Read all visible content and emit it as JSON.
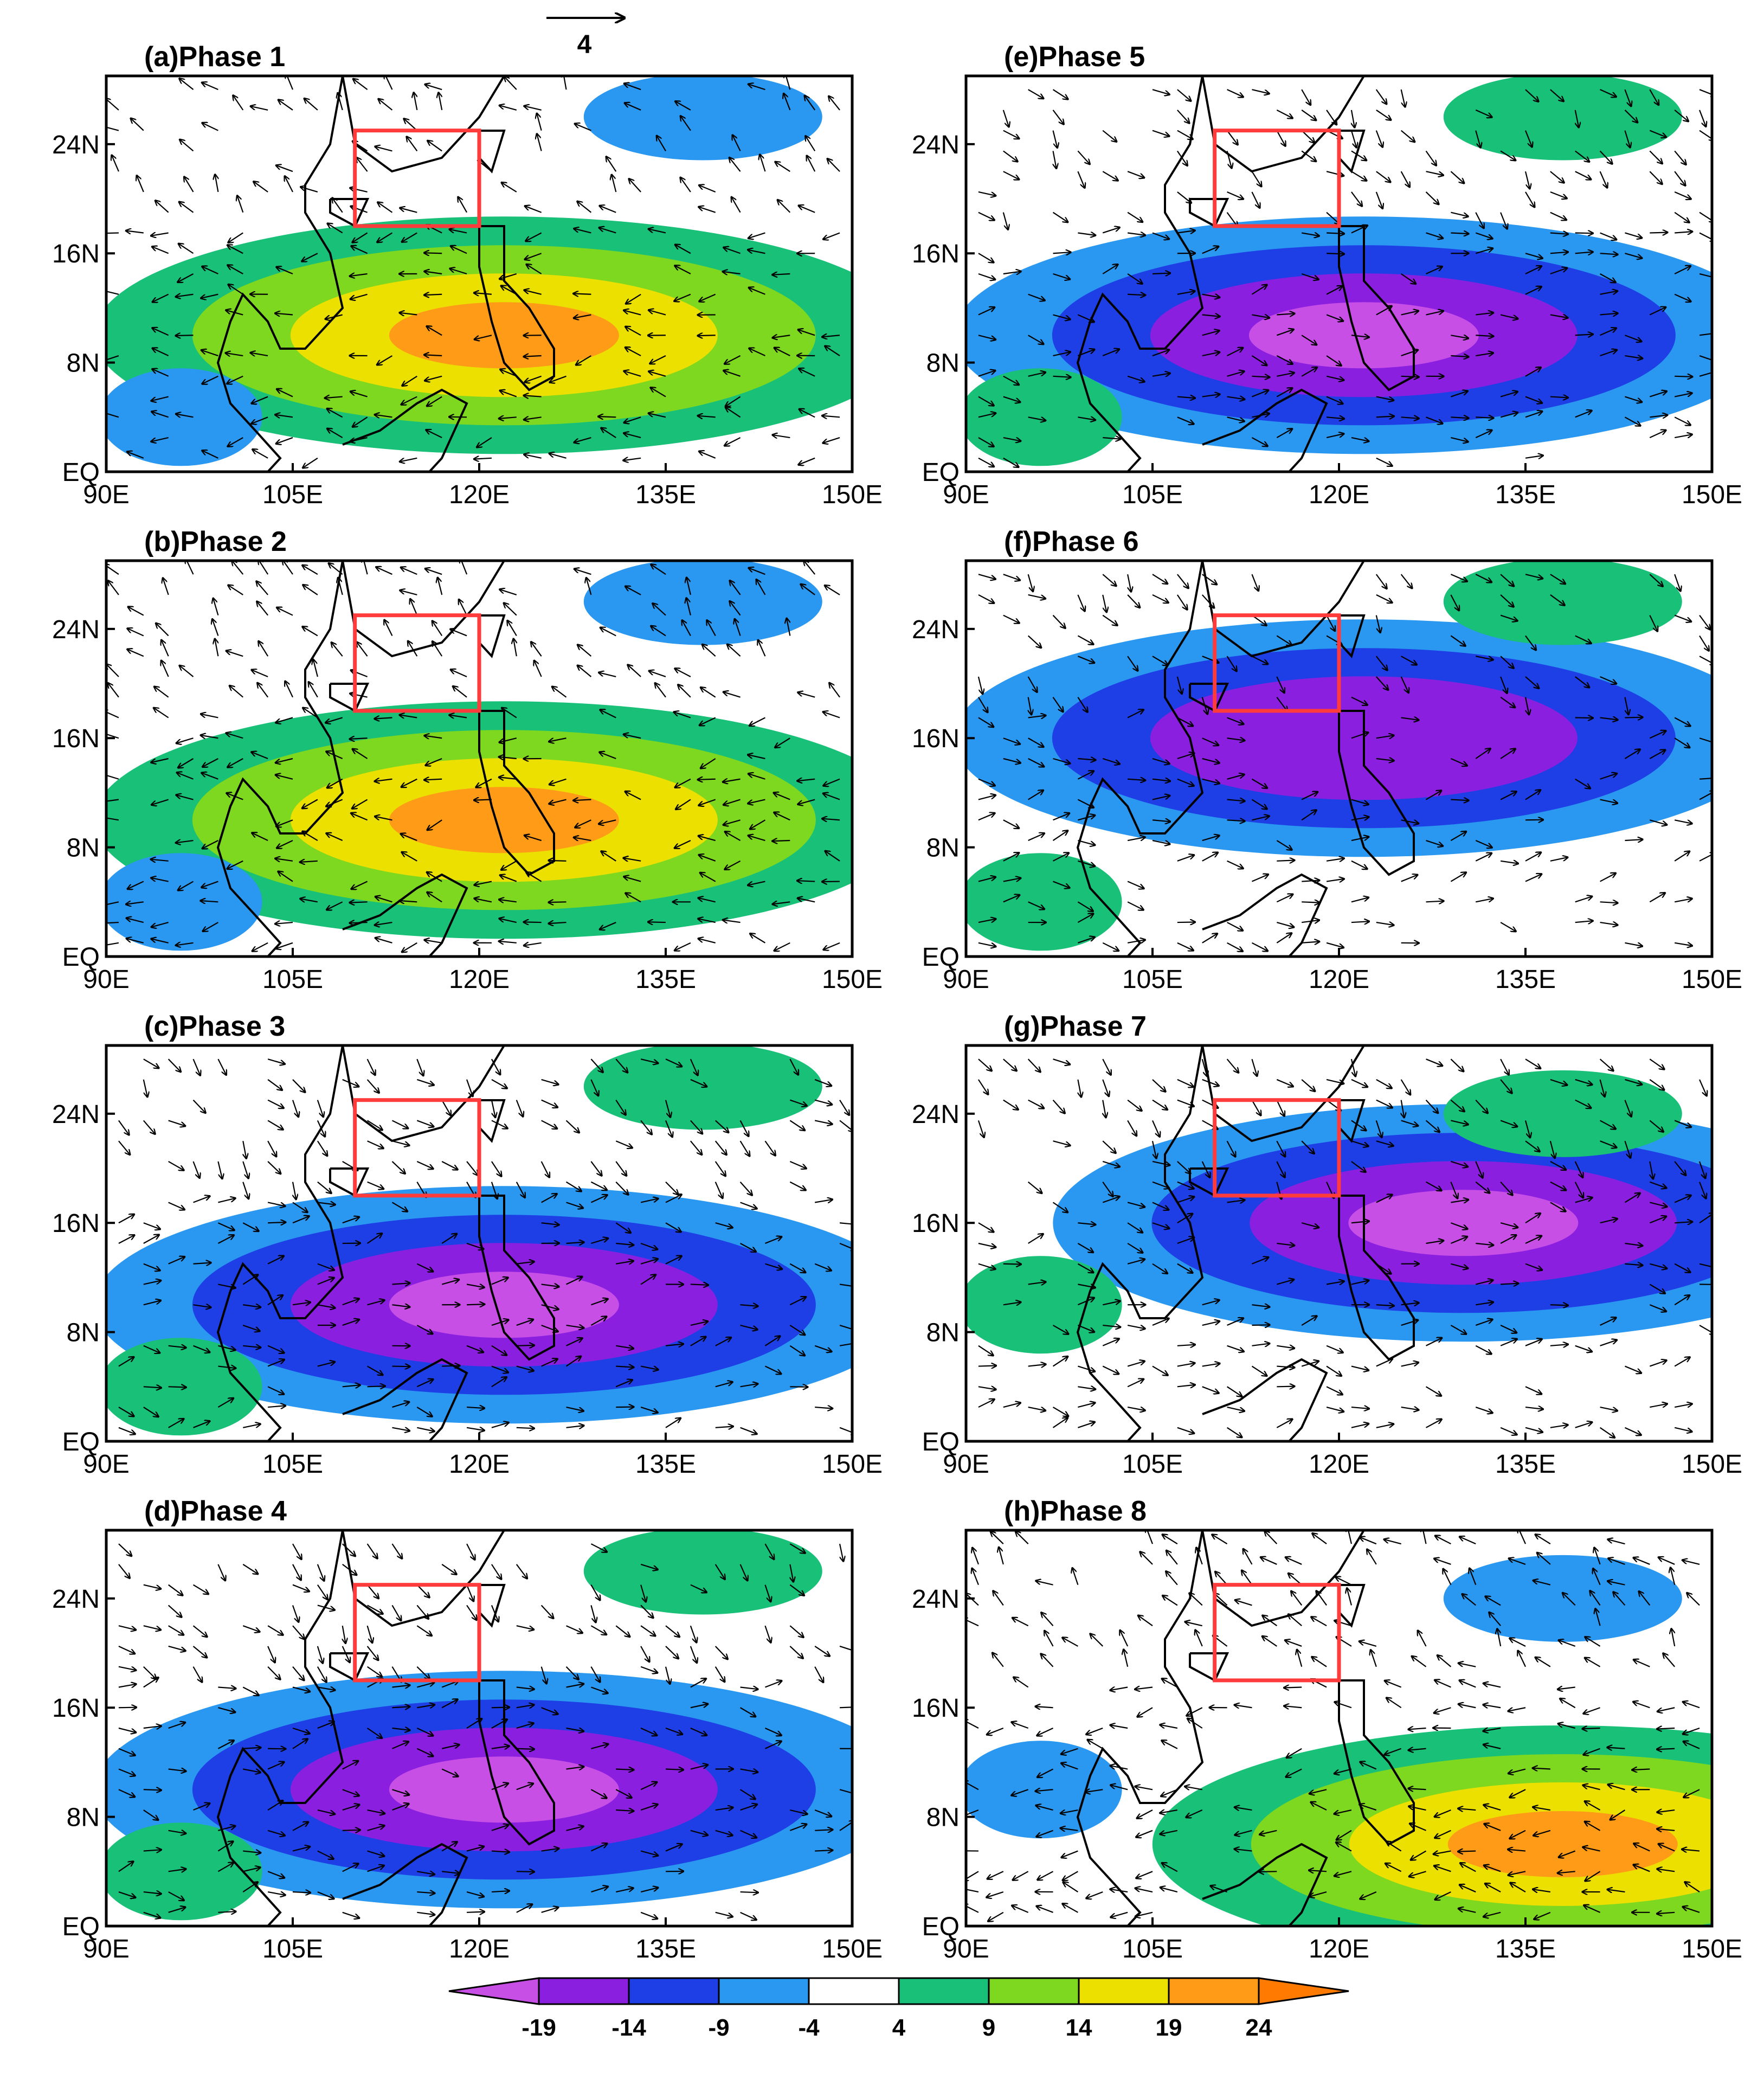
{
  "figure": {
    "reference_vector": {
      "value": "4"
    },
    "panels": [
      {
        "id": "a",
        "title": "(a)Phase 1",
        "anomaly": "positive",
        "peak_level": 19
      },
      {
        "id": "b",
        "title": "(b)Phase 2",
        "anomaly": "positive",
        "peak_level": 19
      },
      {
        "id": "c",
        "title": "(c)Phase 3",
        "anomaly": "negative",
        "peak_level": -19
      },
      {
        "id": "d",
        "title": "(d)Phase 4",
        "anomaly": "negative",
        "peak_level": -19
      },
      {
        "id": "e",
        "title": "(e)Phase 5",
        "anomaly": "negative",
        "peak_level": -19
      },
      {
        "id": "f",
        "title": "(f)Phase 6",
        "anomaly": "negative",
        "peak_level": -14
      },
      {
        "id": "g",
        "title": "(g)Phase 7",
        "anomaly": "negative",
        "peak_level": -19
      },
      {
        "id": "h",
        "title": "(h)Phase 8",
        "anomaly": "positive",
        "peak_level": 24
      }
    ],
    "x_ticks": [
      "90E",
      "105E",
      "120E",
      "135E",
      "150E"
    ],
    "y_ticks": [
      "EQ",
      "8N",
      "16N",
      "24N"
    ],
    "extent": {
      "lon": [
        90,
        150
      ],
      "lat": [
        0,
        29
      ]
    },
    "highlight_box": {
      "lon": [
        110,
        120
      ],
      "lat": [
        18,
        25
      ],
      "color": "#ff3b3b"
    },
    "colorbar": {
      "levels": [
        "-19",
        "-14",
        "-9",
        "-4",
        "4",
        "9",
        "14",
        "19",
        "24"
      ],
      "colors": [
        "#c84fe6",
        "#8a1fe0",
        "#1e3fe6",
        "#2a98f0",
        "#ffffff",
        "#18c078",
        "#7ed820",
        "#ebe000",
        "#ff9b16",
        "#ff7a00"
      ]
    }
  }
}
